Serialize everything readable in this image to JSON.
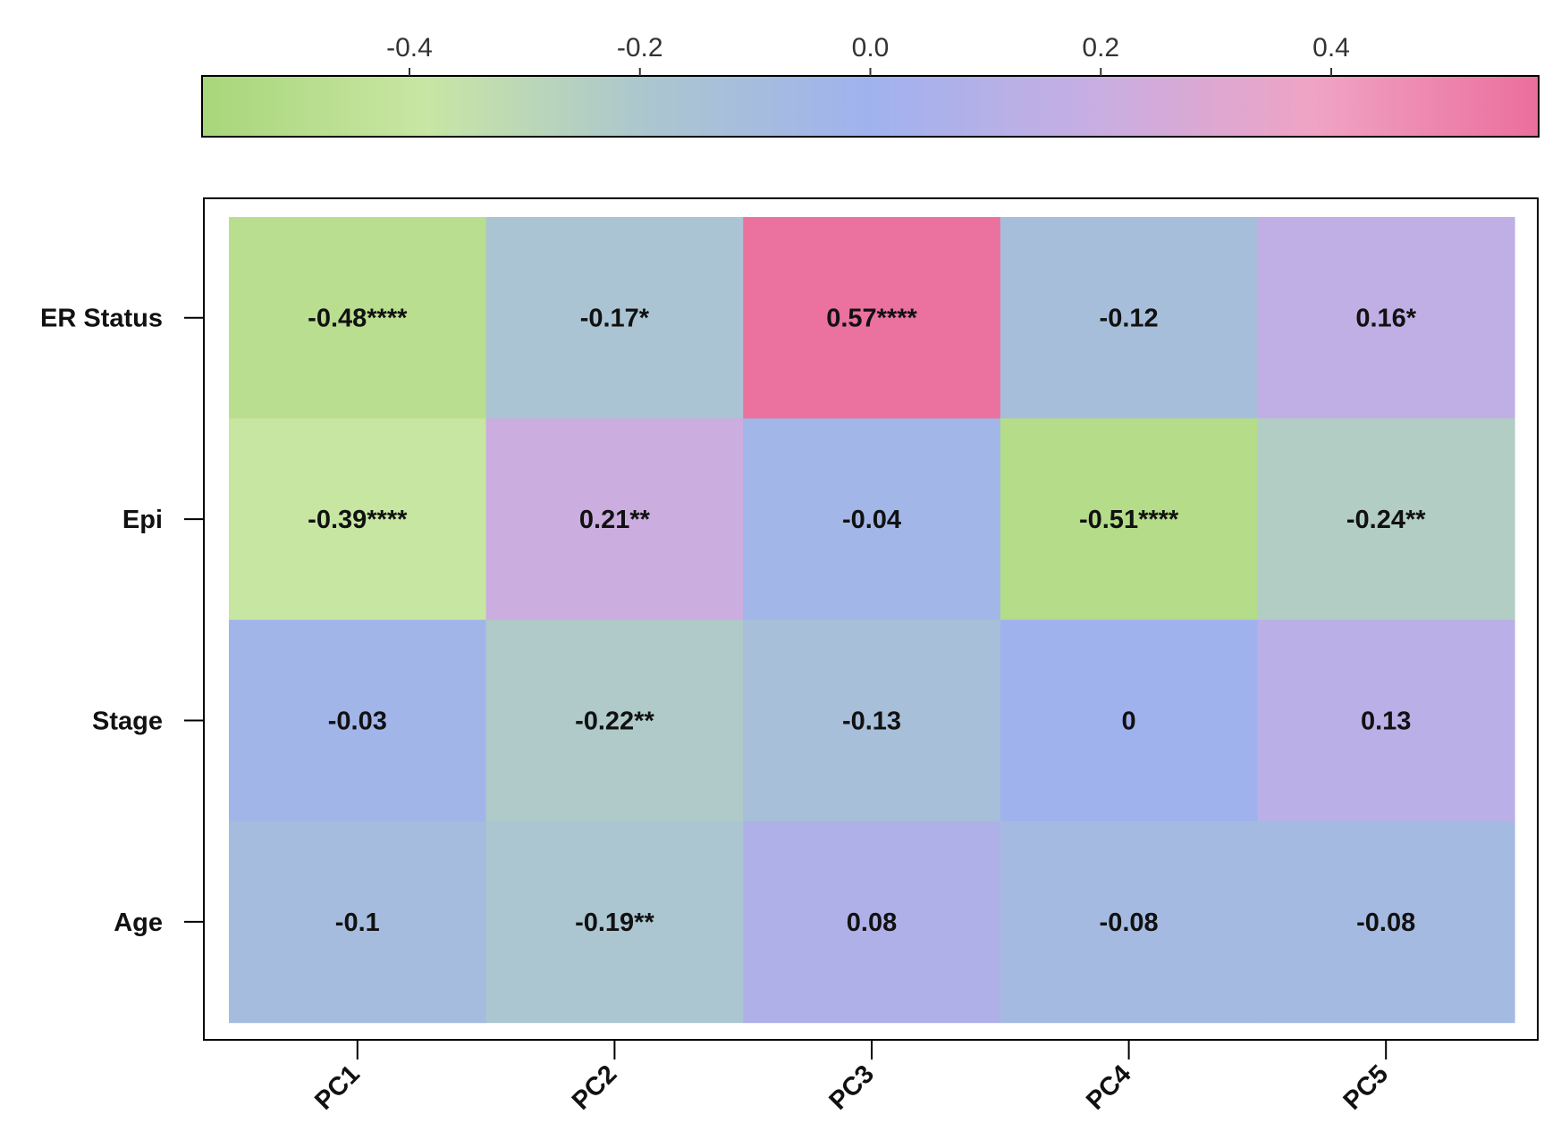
{
  "chart_data": {
    "type": "heatmap",
    "title": "",
    "xlabel": "",
    "ylabel": "",
    "columns": [
      "PC1",
      "PC2",
      "PC3",
      "PC4",
      "PC5"
    ],
    "rows": [
      "ER Status",
      "Epi",
      "Stage",
      "Age"
    ],
    "values": [
      [
        -0.48,
        -0.17,
        0.57,
        -0.12,
        0.16
      ],
      [
        -0.39,
        0.21,
        -0.04,
        -0.51,
        -0.24
      ],
      [
        -0.03,
        -0.22,
        -0.13,
        0,
        0.13
      ],
      [
        -0.1,
        -0.19,
        0.08,
        -0.08,
        -0.08
      ]
    ],
    "cell_labels": [
      [
        "-0.48****",
        "-0.17*",
        "0.57****",
        "-0.12",
        "0.16*"
      ],
      [
        "-0.39****",
        "0.21**",
        "-0.04",
        "-0.51****",
        "-0.24**"
      ],
      [
        "-0.03",
        "-0.22**",
        "-0.13",
        "0",
        "0.13"
      ],
      [
        "-0.1",
        "-0.19**",
        "0.08",
        "-0.08",
        "-0.08"
      ]
    ],
    "colorbar": {
      "placement": "top",
      "range": [
        -0.58,
        0.58
      ],
      "ticks": [
        -0.4,
        -0.2,
        0.0,
        0.2,
        0.4
      ],
      "tick_labels": [
        "-0.4",
        "-0.2",
        "0.0",
        "0.2",
        "0.4"
      ],
      "colors": [
        "#a8d67a",
        "#c8e6a3",
        "#abc6cf",
        "#a0b2ee",
        "#c7aee2",
        "#f0a3c4",
        "#eb6e9c"
      ]
    },
    "grid": false
  }
}
